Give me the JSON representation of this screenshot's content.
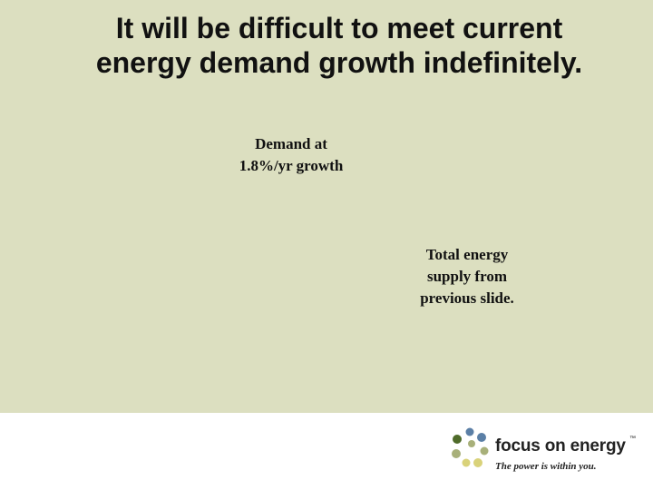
{
  "slide": {
    "title_lines": [
      "It will be difficult to meet current",
      "energy demand growth indefinitely."
    ],
    "demand_note_lines": [
      "Demand at",
      "1.8%/yr growth"
    ],
    "supply_note_lines": [
      "Total energy",
      "supply from",
      "previous slide."
    ],
    "background_color": "#dcdfc0"
  },
  "footer": {
    "brand": "focus on energy",
    "trademark": "™",
    "tagline": "The power is within you.",
    "logo_dot_colors": [
      "#5b7fa6",
      "#a8b07a",
      "#4f6b2a",
      "#d9d27a"
    ]
  }
}
